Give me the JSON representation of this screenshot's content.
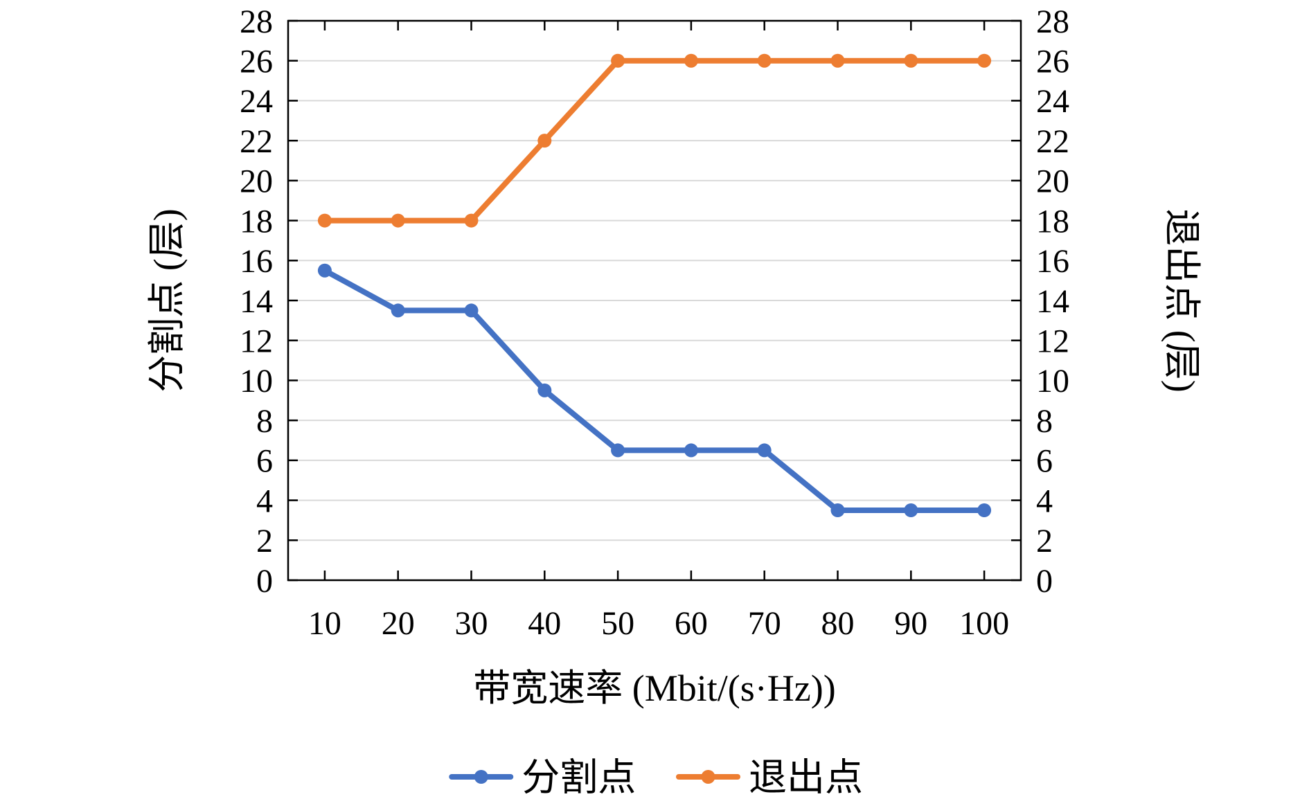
{
  "chart_data": {
    "type": "line",
    "categories": [
      10,
      20,
      30,
      40,
      50,
      60,
      70,
      80,
      90,
      100
    ],
    "series": [
      {
        "name": "分割点",
        "color": "#4472C4",
        "values": [
          15.5,
          13.5,
          13.5,
          9.5,
          6.5,
          6.5,
          6.5,
          3.5,
          3.5,
          3.5
        ]
      },
      {
        "name": "退出点",
        "color": "#ED7D31",
        "values": [
          18,
          18,
          18,
          22,
          26,
          26,
          26,
          26,
          26,
          26
        ]
      }
    ],
    "title": "",
    "xlabel": "带宽速率 (Mbit/(s·Hz))",
    "ylabel_left": "分割点 (层)",
    "ylabel_right": "退出点 (层)",
    "ylim": [
      0,
      28
    ],
    "ytick_step": 2,
    "grid": true,
    "grid_color": "#d9d9d9",
    "axis_color": "#000000",
    "legend_position": "bottom",
    "legend_items": [
      "分割点",
      "退出点"
    ]
  }
}
